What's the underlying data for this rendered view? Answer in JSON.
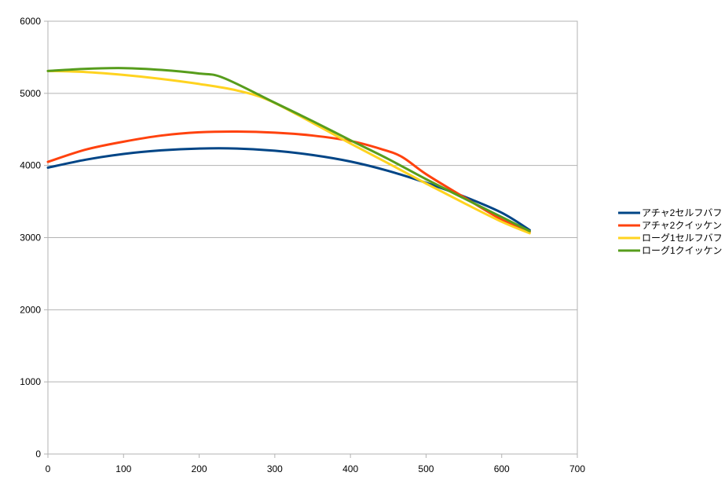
{
  "chart_data": {
    "type": "line",
    "title": "",
    "xlabel": "",
    "ylabel": "",
    "xlim": [
      0,
      700
    ],
    "ylim": [
      0,
      6000
    ],
    "x_ticks": [
      0,
      100,
      200,
      300,
      400,
      500,
      600,
      700
    ],
    "y_ticks": [
      0,
      1000,
      2000,
      3000,
      4000,
      5000,
      6000
    ],
    "x_tick_labels": [
      "0",
      "100",
      "200",
      "300",
      "400",
      "500",
      "600",
      "700"
    ],
    "y_tick_labels": [
      "0",
      "1000",
      "2000",
      "3000",
      "4000",
      "5000",
      "6000"
    ],
    "grid": "horizontal",
    "legend_position": "right",
    "series": [
      {
        "name": "アチャ2セルフバフ",
        "color": "#004586",
        "points": [
          [
            0,
            3970
          ],
          [
            50,
            4080
          ],
          [
            100,
            4160
          ],
          [
            150,
            4210
          ],
          [
            200,
            4235
          ],
          [
            250,
            4235
          ],
          [
            300,
            4205
          ],
          [
            350,
            4145
          ],
          [
            400,
            4055
          ],
          [
            450,
            3925
          ],
          [
            500,
            3760
          ],
          [
            550,
            3570
          ],
          [
            600,
            3345
          ],
          [
            637,
            3105
          ]
        ]
      },
      {
        "name": "アチャ2クイッケン",
        "color": "#ff420e",
        "points": [
          [
            0,
            4050
          ],
          [
            50,
            4220
          ],
          [
            100,
            4330
          ],
          [
            150,
            4415
          ],
          [
            200,
            4460
          ],
          [
            250,
            4470
          ],
          [
            300,
            4455
          ],
          [
            350,
            4415
          ],
          [
            400,
            4340
          ],
          [
            440,
            4230
          ],
          [
            468,
            4120
          ],
          [
            500,
            3880
          ],
          [
            550,
            3560
          ],
          [
            600,
            3250
          ],
          [
            637,
            3080
          ]
        ]
      },
      {
        "name": "ローグ1セルフバフ",
        "color": "#ffd320",
        "points": [
          [
            0,
            5310
          ],
          [
            50,
            5295
          ],
          [
            100,
            5255
          ],
          [
            150,
            5200
          ],
          [
            200,
            5130
          ],
          [
            250,
            5040
          ],
          [
            292,
            4905
          ],
          [
            350,
            4590
          ],
          [
            400,
            4305
          ],
          [
            450,
            4030
          ],
          [
            500,
            3750
          ],
          [
            550,
            3480
          ],
          [
            600,
            3220
          ],
          [
            637,
            3060
          ]
        ]
      },
      {
        "name": "ローグ1クイッケン",
        "color": "#579d1c",
        "points": [
          [
            0,
            5310
          ],
          [
            50,
            5340
          ],
          [
            100,
            5350
          ],
          [
            150,
            5325
          ],
          [
            200,
            5275
          ],
          [
            232,
            5215
          ],
          [
            300,
            4870
          ],
          [
            350,
            4615
          ],
          [
            400,
            4350
          ],
          [
            450,
            4090
          ],
          [
            500,
            3810
          ],
          [
            550,
            3545
          ],
          [
            600,
            3285
          ],
          [
            637,
            3090
          ]
        ]
      }
    ]
  }
}
